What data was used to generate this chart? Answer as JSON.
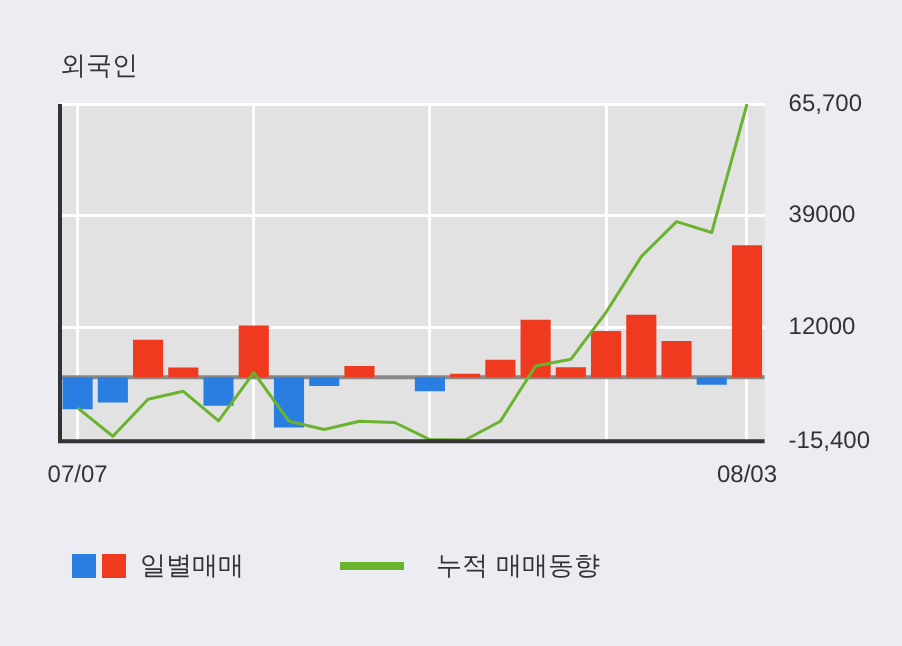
{
  "chart_data": {
    "type": "bar",
    "title": "외국인",
    "categories": [
      "07/07",
      null,
      null,
      null,
      null,
      null,
      null,
      null,
      null,
      null,
      null,
      null,
      null,
      null,
      null,
      null,
      null,
      null,
      null,
      "08/03"
    ],
    "series": [
      {
        "name": "일별매매",
        "colors": [
          "#2a7de1",
          "#2a7de1",
          "#ef3a1f",
          "#ef3a1f",
          "#2a7de1",
          "#ef3a1f",
          "#2a7de1",
          "#2a7de1",
          "#ef3a1f",
          "#ef3a1f",
          "#2a7de1",
          "#ef3a1f",
          "#ef3a1f",
          "#ef3a1f",
          "#ef3a1f",
          "#ef3a1f",
          "#ef3a1f",
          "#ef3a1f",
          "#2a7de1",
          "#ef3a1f"
        ],
        "values": [
          -7700,
          -6100,
          9000,
          2300,
          -6900,
          12400,
          -12100,
          -2100,
          2700,
          0,
          -3400,
          800,
          4200,
          13800,
          2400,
          11100,
          15000,
          8700,
          -1800,
          31700
        ]
      },
      {
        "name": "누적 매매동향",
        "type": "line",
        "color": "#6ab32e",
        "values": [
          -7400,
          -14200,
          -5300,
          -3400,
          -10500,
          1100,
          -10600,
          -12600,
          -10600,
          -10900,
          -15000,
          -15100,
          -10600,
          2700,
          4300,
          15600,
          29000,
          37400,
          34800,
          65700
        ]
      }
    ],
    "ylim": [
      -15400,
      65700
    ],
    "yticks": [
      {
        "value": -15400,
        "label": "-15,400"
      },
      12000,
      39000,
      {
        "value": 65700,
        "label": "65,700"
      }
    ],
    "grid": true,
    "legend": "bottom",
    "marker": "none",
    "line_style": "solid"
  }
}
